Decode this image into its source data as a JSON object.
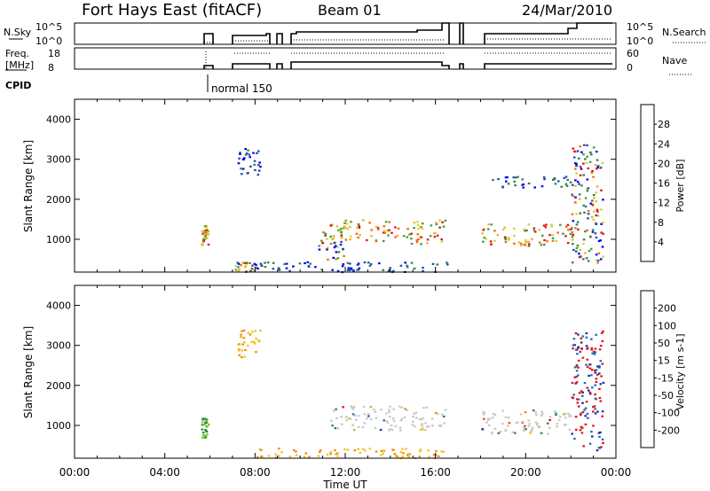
{
  "header": {
    "station": "Fort Hays East (fitACF)",
    "beam": "Beam 01",
    "date": "24/Mar/2010"
  },
  "top_panels": {
    "nsky_label": "N.Sky",
    "nsearch_label": "N.Search",
    "noise_ticks": [
      "10^5",
      "10^0"
    ],
    "freq_label_1": "Freq.",
    "freq_label_2": "[MHz]",
    "freq_ticks": [
      "18",
      "8"
    ],
    "nave_label": "Nave",
    "nave_ticks": [
      "60",
      "0"
    ],
    "cpid_label": "CPID",
    "cpid_value": "normal 150"
  },
  "chart_data": [
    {
      "type": "heatmap",
      "name": "power",
      "title": "",
      "xlabel": "Time UT",
      "ylabel": "Slant Range [km]",
      "xlim": [
        0,
        24
      ],
      "ylim": [
        180,
        4500
      ],
      "x_tick_labels": [
        "00:00",
        "04:00",
        "08:00",
        "12:00",
        "16:00",
        "20:00",
        "00:00"
      ],
      "y_tick_labels": [
        "1000",
        "2000",
        "3000",
        "4000"
      ],
      "colorbar": {
        "label": "Power [dB]",
        "ticks": [
          "4",
          "8",
          "12",
          "16",
          "20",
          "24",
          "28"
        ],
        "colors": [
          "#0000ff",
          "#1c4fa6",
          "#2f7f4f",
          "#3aa13a",
          "#c9d633",
          "#f2b01f",
          "#f06a10",
          "#e81010"
        ]
      },
      "echo_regions": [
        {
          "t0": 5.6,
          "t1": 5.9,
          "r0": 850,
          "r1": 1400,
          "level": "high"
        },
        {
          "t0": 7.1,
          "t1": 8.1,
          "r0": 200,
          "r1": 450,
          "level": "mixed"
        },
        {
          "t0": 7.2,
          "t1": 8.2,
          "r0": 2600,
          "r1": 3300,
          "level": "low"
        },
        {
          "t0": 10.8,
          "t1": 11.9,
          "r0": 500,
          "r1": 1200,
          "level": "mixed"
        },
        {
          "t0": 11.3,
          "t1": 16.4,
          "r0": 900,
          "r1": 1500,
          "level": "high"
        },
        {
          "t0": 18.0,
          "t1": 22.1,
          "r0": 850,
          "r1": 1400,
          "level": "high"
        },
        {
          "t0": 22.0,
          "t1": 23.4,
          "r0": 400,
          "r1": 3400,
          "level": "mixed"
        },
        {
          "t0": 8.0,
          "t1": 16.5,
          "r0": 200,
          "r1": 450,
          "level": "low"
        },
        {
          "t0": 18.5,
          "t1": 22.0,
          "r0": 2300,
          "r1": 2600,
          "level": "low"
        }
      ]
    },
    {
      "type": "heatmap",
      "name": "velocity",
      "title": "",
      "xlabel": "Time UT",
      "ylabel": "Slant Range [km]",
      "xlim": [
        0,
        24
      ],
      "ylim": [
        180,
        4500
      ],
      "x_tick_labels": [
        "00:00",
        "04:00",
        "08:00",
        "12:00",
        "16:00",
        "20:00",
        "00:00"
      ],
      "y_tick_labels": [
        "1000",
        "2000",
        "3000",
        "4000"
      ],
      "colorbar": {
        "label": "Velocity [m s-1]",
        "ticks": [
          "200",
          "100",
          "50",
          "15",
          "-15",
          "-50",
          "-100",
          "-200"
        ],
        "colors": [
          "#1a2fa0",
          "#1c6fb5",
          "#2d8a3e",
          "#7dcf3a",
          "#c8c8c8",
          "#f3c21a",
          "#f08a10",
          "#e94a10",
          "#e81010"
        ]
      },
      "echo_regions": [
        {
          "t0": 5.6,
          "t1": 5.9,
          "r0": 700,
          "r1": 1200,
          "level": "green"
        },
        {
          "t0": 7.2,
          "t1": 8.2,
          "r0": 2700,
          "r1": 3400,
          "level": "orange"
        },
        {
          "t0": 11.3,
          "t1": 16.4,
          "r0": 900,
          "r1": 1500,
          "level": "grey"
        },
        {
          "t0": 18.0,
          "t1": 22.1,
          "r0": 800,
          "r1": 1400,
          "level": "grey"
        },
        {
          "t0": 22.0,
          "t1": 23.4,
          "r0": 400,
          "r1": 3400,
          "level": "redblue"
        },
        {
          "t0": 8.0,
          "t1": 16.5,
          "r0": 200,
          "r1": 450,
          "level": "orange"
        }
      ]
    }
  ]
}
